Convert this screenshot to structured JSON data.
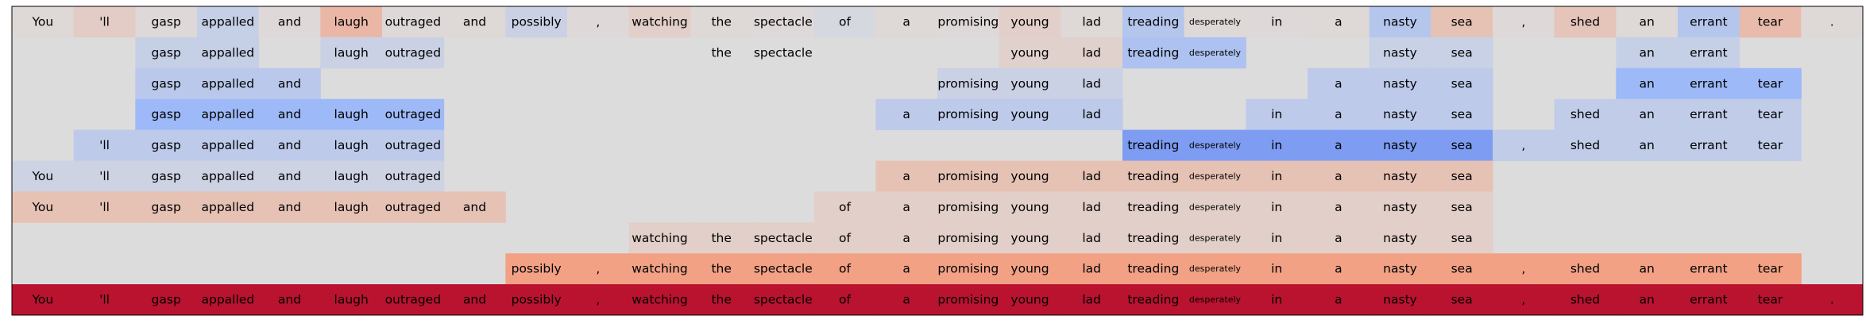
{
  "chart_data": {
    "type": "heatmap",
    "title": "",
    "colormap": "coolwarm",
    "background_color": "#dddcdc",
    "border_color": "#000000",
    "value_range": [
      -1,
      1
    ],
    "tokens": [
      "You",
      "'ll",
      "gasp",
      "appalled",
      "and",
      "laugh",
      "outraged",
      "and",
      "possibly",
      ",",
      "watching",
      "the",
      "spectacle",
      "of",
      "a",
      "promising",
      "young",
      "lad",
      "treading",
      "desperately",
      "in",
      "a",
      "nasty",
      "sea",
      ",",
      "shed",
      "an",
      "errant",
      "tear",
      "."
    ],
    "rows": [
      {
        "tokens": [
          "You",
          "'ll",
          "gasp",
          "appalled",
          "and",
          "laugh",
          "outraged",
          "and",
          "possibly",
          ",",
          "watching",
          "the",
          "spectacle",
          "of",
          "a",
          "promising",
          "young",
          "lad",
          "treading",
          "desperately",
          "in",
          "a",
          "nasty",
          "sea",
          ",",
          "shed",
          "an",
          "errant",
          "tear",
          "."
        ],
        "values": [
          0.03,
          0.12,
          0.02,
          -0.15,
          0.02,
          0.28,
          0.02,
          0.03,
          -0.12,
          0.02,
          0.1,
          0.03,
          0.02,
          -0.05,
          0.03,
          0.02,
          0.1,
          0.03,
          -0.25,
          0.03,
          0.02,
          0.03,
          -0.25,
          0.2,
          0.02,
          0.18,
          0.03,
          -0.25,
          0.25,
          0.03
        ]
      },
      {
        "tokens": [
          "",
          "",
          "gasp",
          "appalled",
          "",
          "laugh",
          "outraged",
          "",
          "",
          "",
          "",
          "the",
          "spectacle",
          "",
          "",
          "",
          "young",
          "lad",
          "treading",
          "desperately",
          "",
          "",
          "nasty",
          "sea",
          "",
          "",
          "an",
          "errant",
          "",
          ""
        ],
        "values": [
          0,
          0,
          -0.15,
          -0.15,
          0,
          -0.12,
          -0.12,
          0,
          0,
          0,
          0,
          0,
          0,
          0,
          0,
          0,
          0.08,
          0.08,
          -0.3,
          -0.3,
          0,
          0,
          -0.13,
          -0.13,
          0,
          0,
          -0.15,
          -0.15,
          0,
          0
        ]
      },
      {
        "tokens": [
          "",
          "",
          "gasp",
          "appalled",
          "and",
          "",
          "",
          "",
          "",
          "",
          "",
          "",
          "",
          "",
          "",
          "promising",
          "young",
          "lad",
          "",
          "",
          "",
          "a",
          "nasty",
          "sea",
          "",
          "",
          "an",
          "errant",
          "tear",
          ""
        ],
        "values": [
          0,
          0,
          -0.22,
          -0.22,
          -0.22,
          0,
          0,
          0,
          0,
          0,
          0,
          0,
          0,
          0,
          0,
          -0.12,
          -0.12,
          -0.12,
          0,
          0,
          0,
          -0.2,
          -0.2,
          -0.2,
          0,
          0,
          -0.4,
          -0.4,
          -0.4,
          0
        ]
      },
      {
        "tokens": [
          "",
          "",
          "gasp",
          "appalled",
          "and",
          "laugh",
          "outraged",
          "",
          "",
          "",
          "",
          "",
          "",
          "",
          "a",
          "promising",
          "young",
          "lad",
          "",
          "",
          "in",
          "a",
          "nasty",
          "sea",
          "",
          "shed",
          "an",
          "errant",
          "tear",
          ""
        ],
        "values": [
          0,
          0,
          -0.4,
          -0.4,
          -0.4,
          -0.4,
          -0.4,
          0,
          0,
          0,
          0,
          0,
          0,
          0,
          -0.2,
          -0.2,
          -0.2,
          -0.2,
          0,
          0,
          -0.2,
          -0.2,
          -0.2,
          -0.2,
          0,
          -0.18,
          -0.18,
          -0.18,
          -0.18,
          0
        ]
      },
      {
        "tokens": [
          "",
          "'ll",
          "gasp",
          "appalled",
          "and",
          "laugh",
          "outraged",
          "",
          "",
          "",
          "",
          "",
          "",
          "",
          "",
          "",
          "",
          "",
          "treading",
          "desperately",
          "in",
          "a",
          "nasty",
          "sea",
          ",",
          "shed",
          "an",
          "errant",
          "tear",
          ""
        ],
        "values": [
          0,
          -0.2,
          -0.2,
          -0.2,
          -0.2,
          -0.2,
          -0.2,
          0,
          0,
          0,
          0,
          0,
          0,
          0,
          0,
          0,
          0,
          0,
          -0.6,
          -0.6,
          -0.6,
          -0.6,
          -0.6,
          -0.6,
          -0.18,
          -0.18,
          -0.18,
          -0.18,
          -0.18,
          0
        ]
      },
      {
        "tokens": [
          "You",
          "'ll",
          "gasp",
          "appalled",
          "and",
          "laugh",
          "outraged",
          "",
          "",
          "",
          "",
          "",
          "",
          "",
          "a",
          "promising",
          "young",
          "lad",
          "treading",
          "desperately",
          "in",
          "a",
          "nasty",
          "sea",
          "",
          "",
          "",
          "",
          "",
          ""
        ],
        "values": [
          -0.1,
          -0.1,
          -0.1,
          -0.1,
          -0.1,
          -0.1,
          -0.1,
          0,
          0,
          0,
          0,
          0,
          0,
          0,
          0.2,
          0.2,
          0.2,
          0.2,
          0.2,
          0.2,
          0.2,
          0.2,
          0.2,
          0.2,
          0,
          0,
          0,
          0,
          0,
          0
        ]
      },
      {
        "tokens": [
          "You",
          "'ll",
          "gasp",
          "appalled",
          "and",
          "laugh",
          "outraged",
          "and",
          "",
          "",
          "",
          "",
          "",
          "of",
          "a",
          "promising",
          "young",
          "lad",
          "treading",
          "desperately",
          "in",
          "a",
          "nasty",
          "sea",
          "",
          "",
          "",
          "",
          "",
          ""
        ],
        "values": [
          0.2,
          0.2,
          0.2,
          0.2,
          0.2,
          0.2,
          0.2,
          0.2,
          0,
          0,
          0,
          0,
          0,
          0.1,
          0.1,
          0.1,
          0.1,
          0.1,
          0.1,
          0.1,
          0.1,
          0.1,
          0.1,
          0.1,
          0,
          0,
          0,
          0,
          0,
          0
        ]
      },
      {
        "tokens": [
          "",
          "",
          "",
          "",
          "",
          "",
          "",
          "",
          "",
          "",
          "watching",
          "the",
          "spectacle",
          "of",
          "a",
          "promising",
          "young",
          "lad",
          "treading",
          "desperately",
          "in",
          "a",
          "nasty",
          "sea",
          "",
          "",
          "",
          "",
          "",
          ""
        ],
        "values": [
          0,
          0,
          0,
          0,
          0,
          0,
          0,
          0,
          0,
          0,
          0.1,
          0.1,
          0.1,
          0.1,
          0.1,
          0.1,
          0.1,
          0.1,
          0.1,
          0.1,
          0.1,
          0.1,
          0.1,
          0.1,
          0,
          0,
          0,
          0,
          0,
          0
        ]
      },
      {
        "tokens": [
          "",
          "",
          "",
          "",
          "",
          "",
          "",
          "",
          "possibly",
          ",",
          "watching",
          "the",
          "spectacle",
          "of",
          "a",
          "promising",
          "young",
          "lad",
          "treading",
          "desperately",
          "in",
          "a",
          "nasty",
          "sea",
          ",",
          "shed",
          "an",
          "errant",
          "tear",
          ""
        ],
        "values": [
          0,
          0,
          0,
          0,
          0,
          0,
          0,
          0,
          0.45,
          0.45,
          0.45,
          0.45,
          0.45,
          0.45,
          0.45,
          0.45,
          0.45,
          0.45,
          0.45,
          0.45,
          0.45,
          0.45,
          0.45,
          0.45,
          0.45,
          0.45,
          0.45,
          0.45,
          0.45,
          0
        ]
      },
      {
        "tokens": [
          "You",
          "'ll",
          "gasp",
          "appalled",
          "and",
          "laugh",
          "outraged",
          "and",
          "possibly",
          ",",
          "watching",
          "the",
          "spectacle",
          "of",
          "a",
          "promising",
          "young",
          "lad",
          "treading",
          "desperately",
          "in",
          "a",
          "nasty",
          "sea",
          ",",
          "shed",
          "an",
          "errant",
          "tear",
          "."
        ],
        "values": [
          0.95,
          0.95,
          0.95,
          0.95,
          0.95,
          0.95,
          0.95,
          0.95,
          0.95,
          0.95,
          0.95,
          0.95,
          0.95,
          0.95,
          0.95,
          0.95,
          0.95,
          0.95,
          0.95,
          0.95,
          0.95,
          0.95,
          0.95,
          0.95,
          0.95,
          0.95,
          0.95,
          0.95,
          0.95,
          0.95
        ]
      }
    ]
  }
}
